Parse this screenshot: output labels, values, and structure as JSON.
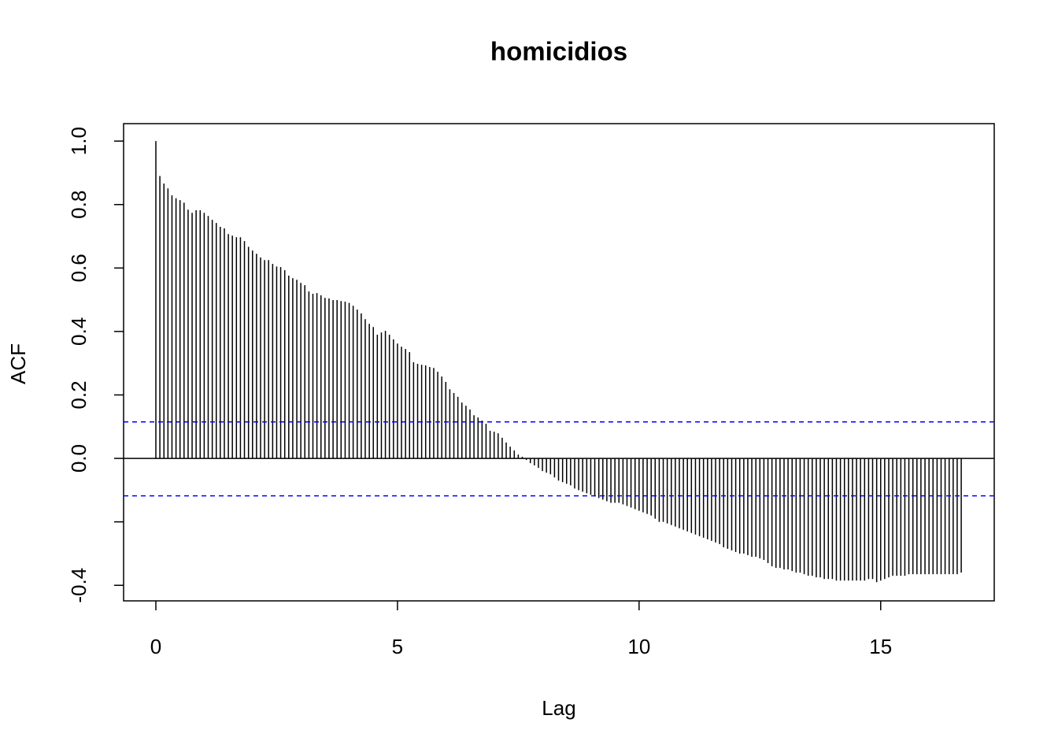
{
  "chart_data": {
    "type": "acf",
    "title": "homicidios",
    "x_label": "Lag",
    "y_label": "ACF",
    "x": [
      0,
      0.083,
      0.167,
      0.25,
      0.333,
      0.417,
      0.5,
      0.583,
      0.667,
      0.75,
      0.833,
      0.917,
      1,
      1.083,
      1.167,
      1.25,
      1.333,
      1.417,
      1.5,
      1.583,
      1.667,
      1.75,
      1.833,
      1.917,
      2,
      2.083,
      2.167,
      2.25,
      2.333,
      2.417,
      2.5,
      2.583,
      2.667,
      2.75,
      2.833,
      2.917,
      3,
      3.083,
      3.167,
      3.25,
      3.333,
      3.417,
      3.5,
      3.583,
      3.667,
      3.75,
      3.833,
      3.917,
      4,
      4.083,
      4.167,
      4.25,
      4.333,
      4.417,
      4.5,
      4.583,
      4.667,
      4.75,
      4.833,
      4.917,
      5,
      5.083,
      5.167,
      5.25,
      5.333,
      5.417,
      5.5,
      5.583,
      5.667,
      5.75,
      5.833,
      5.917,
      6,
      6.083,
      6.167,
      6.25,
      6.333,
      6.417,
      6.5,
      6.583,
      6.667,
      6.75,
      6.833,
      6.917,
      7,
      7.083,
      7.167,
      7.25,
      7.333,
      7.417,
      7.5,
      7.583,
      7.667,
      7.75,
      7.833,
      7.917,
      8,
      8.083,
      8.167,
      8.25,
      8.333,
      8.417,
      8.5,
      8.583,
      8.667,
      8.75,
      8.833,
      8.917,
      9,
      9.083,
      9.167,
      9.25,
      9.333,
      9.417,
      9.5,
      9.583,
      9.667,
      9.75,
      9.833,
      9.917,
      10,
      10.083,
      10.167,
      10.25,
      10.333,
      10.417,
      10.5,
      10.583,
      10.667,
      10.75,
      10.833,
      10.917,
      11,
      11.083,
      11.167,
      11.25,
      11.333,
      11.417,
      11.5,
      11.583,
      11.667,
      11.75,
      11.833,
      11.917,
      12,
      12.083,
      12.167,
      12.25,
      12.333,
      12.417,
      12.5,
      12.583,
      12.667,
      12.75,
      12.833,
      12.917,
      13,
      13.083,
      13.167,
      13.25,
      13.333,
      13.417,
      13.5,
      13.583,
      13.667,
      13.75,
      13.833,
      13.917,
      14,
      14.083,
      14.167,
      14.25,
      14.333,
      14.417,
      14.5,
      14.583,
      14.667,
      14.75,
      14.833,
      14.917,
      15,
      15.083,
      15.167,
      15.25,
      15.333,
      15.417,
      15.5,
      15.583,
      15.667,
      15.75,
      15.833,
      15.917,
      16,
      16.083,
      16.167,
      16.25,
      16.333,
      16.417,
      16.5,
      16.583,
      16.667
    ],
    "values": [
      1.0,
      0.89,
      0.866,
      0.851,
      0.829,
      0.82,
      0.814,
      0.806,
      0.784,
      0.774,
      0.782,
      0.782,
      0.774,
      0.764,
      0.752,
      0.742,
      0.73,
      0.725,
      0.707,
      0.702,
      0.697,
      0.697,
      0.685,
      0.667,
      0.655,
      0.645,
      0.633,
      0.625,
      0.625,
      0.613,
      0.605,
      0.603,
      0.593,
      0.576,
      0.568,
      0.563,
      0.553,
      0.546,
      0.526,
      0.519,
      0.521,
      0.514,
      0.506,
      0.504,
      0.499,
      0.499,
      0.496,
      0.494,
      0.49,
      0.481,
      0.469,
      0.457,
      0.439,
      0.424,
      0.414,
      0.39,
      0.397,
      0.402,
      0.39,
      0.375,
      0.362,
      0.352,
      0.345,
      0.335,
      0.303,
      0.298,
      0.295,
      0.293,
      0.288,
      0.285,
      0.273,
      0.258,
      0.241,
      0.218,
      0.206,
      0.194,
      0.176,
      0.166,
      0.154,
      0.136,
      0.129,
      0.119,
      0.109,
      0.087,
      0.084,
      0.079,
      0.065,
      0.05,
      0.037,
      0.025,
      0.012,
      0.005,
      -0.005,
      -0.015,
      -0.022,
      -0.03,
      -0.04,
      -0.045,
      -0.05,
      -0.06,
      -0.07,
      -0.075,
      -0.08,
      -0.085,
      -0.095,
      -0.1,
      -0.105,
      -0.11,
      -0.115,
      -0.12,
      -0.125,
      -0.13,
      -0.135,
      -0.14,
      -0.14,
      -0.14,
      -0.145,
      -0.15,
      -0.155,
      -0.16,
      -0.165,
      -0.17,
      -0.175,
      -0.18,
      -0.19,
      -0.2,
      -0.2,
      -0.205,
      -0.21,
      -0.215,
      -0.22,
      -0.225,
      -0.23,
      -0.235,
      -0.24,
      -0.245,
      -0.25,
      -0.255,
      -0.26,
      -0.265,
      -0.27,
      -0.28,
      -0.285,
      -0.29,
      -0.295,
      -0.3,
      -0.3,
      -0.305,
      -0.31,
      -0.31,
      -0.315,
      -0.32,
      -0.33,
      -0.34,
      -0.345,
      -0.345,
      -0.35,
      -0.35,
      -0.355,
      -0.36,
      -0.36,
      -0.365,
      -0.37,
      -0.37,
      -0.375,
      -0.375,
      -0.38,
      -0.38,
      -0.38,
      -0.385,
      -0.385,
      -0.385,
      -0.385,
      -0.385,
      -0.385,
      -0.385,
      -0.385,
      -0.38,
      -0.38,
      -0.39,
      -0.385,
      -0.38,
      -0.375,
      -0.37,
      -0.37,
      -0.37,
      -0.37,
      -0.365,
      -0.365,
      -0.365,
      -0.365,
      -0.365,
      -0.365,
      -0.365,
      -0.365,
      -0.365,
      -0.365,
      -0.365,
      -0.365,
      -0.365,
      -0.36
    ],
    "color": "#000000",
    "hlines": [
      {
        "value": 0,
        "color": "#000000",
        "dash": false
      },
      {
        "value": 0.115,
        "color": "#0000ff",
        "dash": true
      },
      {
        "value": -0.118,
        "color": "#0000ff",
        "dash": true
      }
    ],
    "xlim": [
      -0.668,
      17.35
    ],
    "xticks": [
      0,
      5,
      10,
      15
    ],
    "ylim": [
      -0.449,
      1.055
    ],
    "yticks": [
      {
        "value": -0.4,
        "label": "-0.4"
      },
      {
        "value": -0.2,
        "label": null
      },
      {
        "value": 0,
        "label": "0.0"
      },
      {
        "value": 0.2,
        "label": "0.2"
      },
      {
        "value": 0.4,
        "label": "0.4"
      },
      {
        "value": 0.6,
        "label": "0.6"
      },
      {
        "value": 0.8,
        "label": "0.8"
      },
      {
        "value": 1.0,
        "label": "1.0"
      }
    ]
  }
}
